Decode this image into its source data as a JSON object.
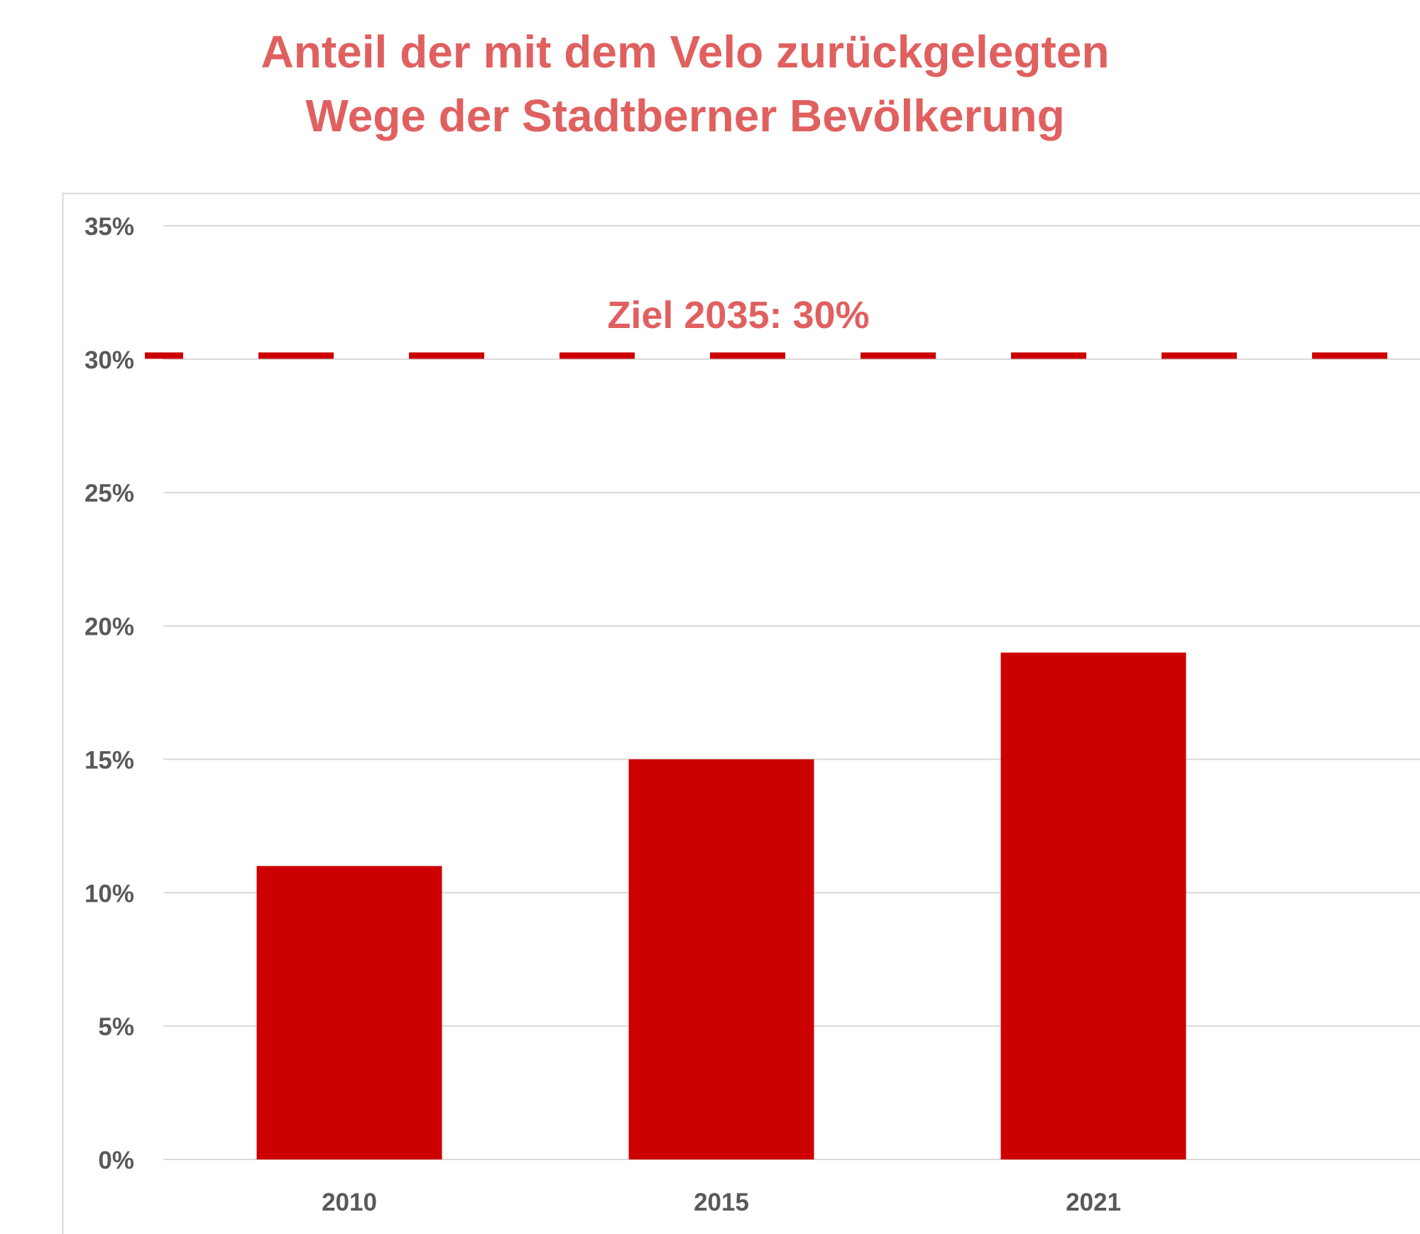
{
  "chart_data": {
    "type": "bar",
    "title_lines": [
      "Anteil der mit dem Velo zurückgelegten",
      "Wege der Stadtberner Bevölkerung"
    ],
    "categories": [
      "2010",
      "2015",
      "2021"
    ],
    "values": [
      11,
      15,
      19
    ],
    "ylim": [
      0,
      35
    ],
    "yticks": [
      0,
      5,
      10,
      15,
      20,
      25,
      30,
      35
    ],
    "ytick_labels": [
      "0%",
      "5%",
      "10%",
      "15%",
      "20%",
      "25%",
      "30%",
      "35%"
    ],
    "grid": true,
    "target_line": {
      "value": 30,
      "label": "Ziel 2035: 30%",
      "style": "dashed"
    },
    "colors": {
      "bar": "#CC0000",
      "target": "#CC0000",
      "title": "#E06060",
      "axis_text": "#595959",
      "grid": "#D9D9D9"
    }
  }
}
